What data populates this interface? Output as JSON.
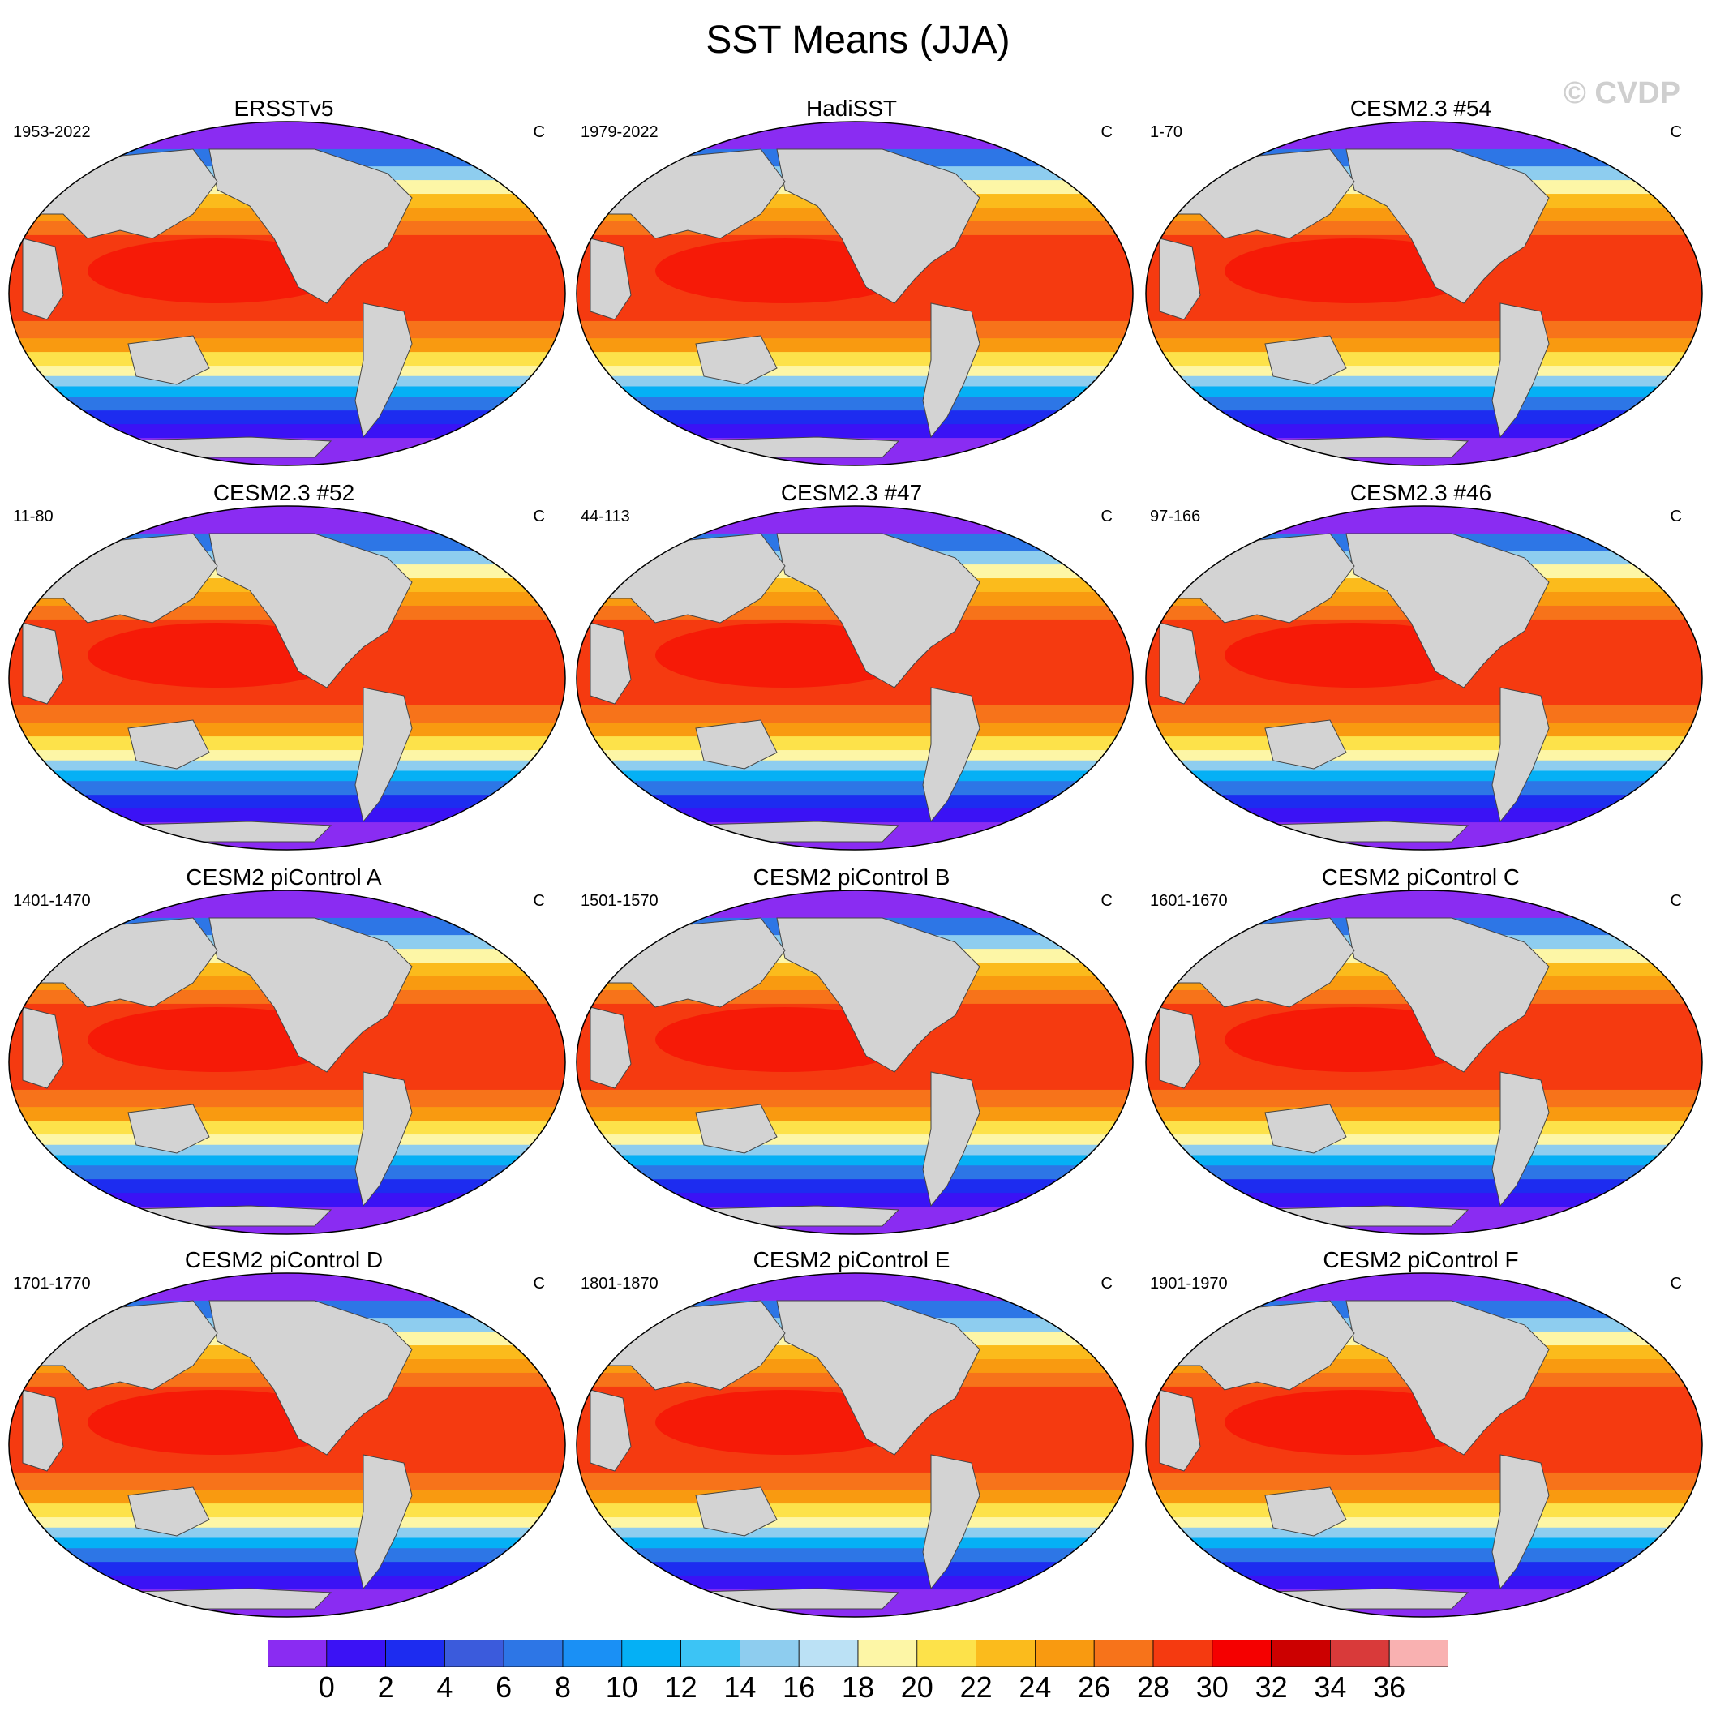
{
  "title": "SST Means (JJA)",
  "watermark": "© CVDP",
  "panels": [
    {
      "name": "ERSSTv5",
      "range": "1953-2022",
      "units": "C"
    },
    {
      "name": "HadiSST",
      "range": "1979-2022",
      "units": "C"
    },
    {
      "name": "CESM2.3 #54",
      "range": "1-70",
      "units": "C"
    },
    {
      "name": "CESM2.3 #52",
      "range": "11-80",
      "units": "C"
    },
    {
      "name": "CESM2.3 #47",
      "range": "44-113",
      "units": "C"
    },
    {
      "name": "CESM2.3 #46",
      "range": "97-166",
      "units": "C"
    },
    {
      "name": "CESM2 piControl A",
      "range": "1401-1470",
      "units": "C"
    },
    {
      "name": "CESM2 piControl B",
      "range": "1501-1570",
      "units": "C"
    },
    {
      "name": "CESM2 piControl C",
      "range": "1601-1670",
      "units": "C"
    },
    {
      "name": "CESM2 piControl D",
      "range": "1701-1770",
      "units": "C"
    },
    {
      "name": "CESM2 piControl E",
      "range": "1801-1870",
      "units": "C"
    },
    {
      "name": "CESM2 piControl F",
      "range": "1901-1970",
      "units": "C"
    }
  ],
  "colorbar": {
    "labels": [
      "0",
      "2",
      "4",
      "6",
      "8",
      "10",
      "12",
      "14",
      "16",
      "18",
      "20",
      "22",
      "24",
      "26",
      "28",
      "30",
      "32",
      "34",
      "36"
    ],
    "colors": [
      "#8a2cf2",
      "#3b12f5",
      "#1d2cf0",
      "#3b5bdc",
      "#2d76e6",
      "#1a90f5",
      "#05b0f5",
      "#3cc4f5",
      "#8ecdef",
      "#bbe1f5",
      "#fdf6a6",
      "#fde24a",
      "#fbbb1c",
      "#f99a10",
      "#f7731a",
      "#f53a10",
      "#f50000",
      "#cc0000",
      "#d93a3a",
      "#f9b1b1"
    ],
    "land_color": "#d3d3d3"
  }
}
